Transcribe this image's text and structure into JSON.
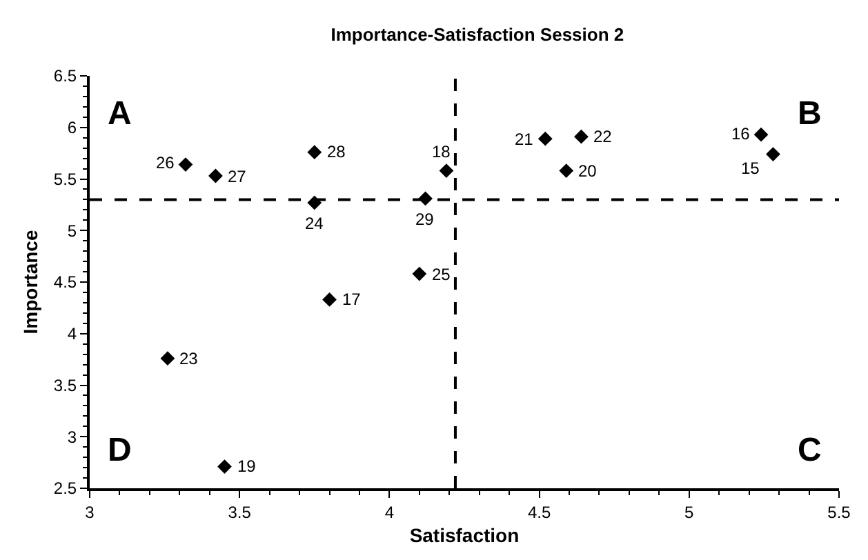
{
  "chart_data": {
    "type": "scatter",
    "title": "Importance-Satisfaction Session 2",
    "xlabel": "Satisfaction",
    "ylabel": "Importance",
    "x": [
      3.32,
      3.42,
      3.75,
      3.75,
      4.12,
      4.1,
      3.8,
      4.19,
      4.52,
      4.64,
      4.59,
      5.24,
      5.28,
      3.26,
      3.45
    ],
    "series": [
      {
        "color": "#000000",
        "values": [
          5.64,
          5.53,
          5.76,
          5.27,
          5.31,
          4.58,
          4.33,
          5.58,
          5.89,
          5.91,
          5.58,
          5.93,
          5.74,
          3.76,
          2.71
        ]
      }
    ],
    "marker": "diamond",
    "xlim": [
      3,
      5.5
    ],
    "xticks": [
      3,
      3.5,
      4,
      4.5,
      5,
      5.5
    ],
    "ylim": [
      2.5,
      6.5
    ],
    "yticks": [
      2.5,
      3,
      3.5,
      4,
      4.5,
      5,
      5.5,
      6,
      6.5
    ],
    "ref_lines": [
      {
        "axis": "x",
        "value": 4.22,
        "color": "#000000",
        "line_style": "dashed"
      },
      {
        "axis": "y",
        "value": 5.3,
        "color": "#000000",
        "line_style": "dashed"
      }
    ],
    "annotations": [
      {
        "text": "26",
        "x": 3.32,
        "y": 5.64
      },
      {
        "text": "27",
        "x": 3.42,
        "y": 5.53
      },
      {
        "text": "28",
        "x": 3.75,
        "y": 5.76
      },
      {
        "text": "24",
        "x": 3.75,
        "y": 5.27
      },
      {
        "text": "29",
        "x": 4.12,
        "y": 5.31
      },
      {
        "text": "25",
        "x": 4.1,
        "y": 4.58
      },
      {
        "text": "17",
        "x": 3.8,
        "y": 4.33
      },
      {
        "text": "18",
        "x": 4.19,
        "y": 5.58
      },
      {
        "text": "21",
        "x": 4.52,
        "y": 5.89
      },
      {
        "text": "22",
        "x": 4.64,
        "y": 5.91
      },
      {
        "text": "20",
        "x": 4.59,
        "y": 5.58
      },
      {
        "text": "16",
        "x": 5.24,
        "y": 5.93
      },
      {
        "text": "15",
        "x": 5.28,
        "y": 5.74
      },
      {
        "text": "23",
        "x": 3.26,
        "y": 3.76
      },
      {
        "text": "19",
        "x": 3.45,
        "y": 2.71
      },
      "A",
      "B",
      "D",
      "C"
    ]
  }
}
